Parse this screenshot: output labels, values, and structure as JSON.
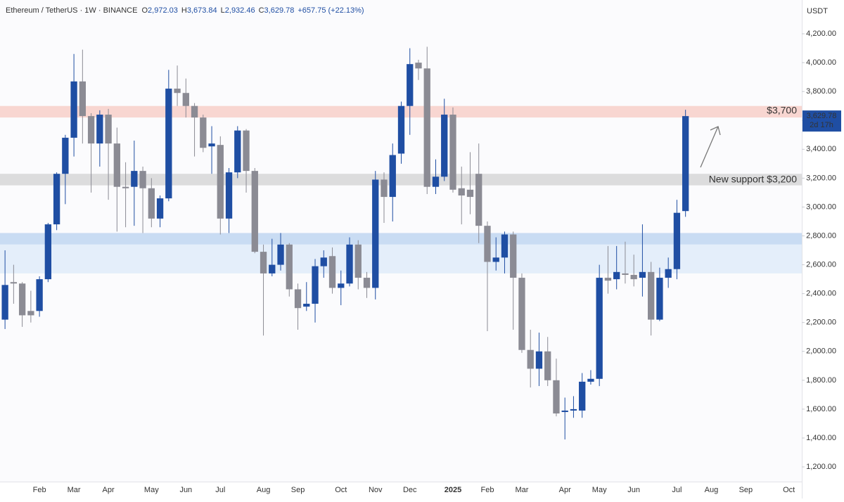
{
  "chart_data": {
    "type": "candlestick",
    "header": {
      "symbol": "Ethereum / TetherUS · 1W · BINANCE",
      "ohlc": [
        {
          "label": "O",
          "value": "2,972.03"
        },
        {
          "label": "H",
          "value": "3,673.84"
        },
        {
          "label": "L",
          "value": "2,932.46"
        },
        {
          "label": "C",
          "value": "3,629.78"
        }
      ],
      "change": "+657.75 (+22.13%)"
    },
    "currency": "USDT",
    "last_price_label": "3,629.78",
    "countdown": "2d 17h",
    "up_color": "#1f4ea3",
    "down_color": "#8b8b94",
    "categories": [
      null,
      null,
      null,
      null,
      "Feb",
      null,
      null,
      null,
      "Mar",
      null,
      null,
      null,
      "Apr",
      null,
      null,
      null,
      null,
      "May",
      null,
      null,
      null,
      "Jun",
      null,
      null,
      null,
      "Jul",
      null,
      null,
      null,
      null,
      "Aug",
      null,
      null,
      null,
      "Sep",
      null,
      null,
      null,
      null,
      "Oct",
      null,
      null,
      null,
      "Nov",
      null,
      null,
      null,
      "Dec",
      null,
      null,
      null,
      null,
      "2025",
      null,
      null,
      null,
      "Feb",
      null,
      null,
      null,
      "Mar",
      null,
      null,
      null,
      null,
      "Apr",
      null,
      null,
      null,
      "May",
      null,
      null,
      null,
      "Jun",
      null,
      null,
      null,
      null,
      "Jul",
      null,
      null,
      null,
      "Aug",
      null,
      null,
      null,
      "Sep",
      null,
      null,
      null,
      null,
      "Oct",
      null
    ],
    "open": [
      2220,
      2480,
      2470,
      2280,
      2280,
      2500,
      2880,
      3230,
      3480,
      3870,
      3630,
      3440,
      3640,
      3440,
      3140,
      3140,
      3250,
      3130,
      2920,
      3060,
      3820,
      3790,
      3700,
      3620,
      3420,
      3430,
      2920,
      3240,
      3530,
      3250,
      2690,
      2540,
      2600,
      2740,
      2430,
      2310,
      2330,
      2590,
      2660,
      2440,
      2470,
      2740,
      2510,
      2440,
      3190,
      3070,
      3370,
      3700,
      4000,
      3960,
      3140,
      3210,
      3640,
      3130,
      3120,
      3230,
      2870,
      2620,
      2650,
      2810,
      2510,
      2010,
      1880,
      2000,
      1800,
      1580,
      1590,
      1590,
      1790,
      1810,
      2510,
      2500,
      2540,
      2530,
      2510,
      2550,
      2220,
      2510,
      2570,
      2972.03,
      null,
      null,
      null,
      null,
      null,
      null,
      null,
      null,
      null,
      null,
      null,
      null,
      null
    ],
    "high": [
      2700,
      2600,
      2480,
      2420,
      2520,
      2890,
      3240,
      3500,
      4060,
      4090,
      3650,
      3670,
      3680,
      3550,
      3310,
      3460,
      3280,
      3200,
      3080,
      3950,
      3980,
      3890,
      3720,
      3640,
      3560,
      3490,
      3270,
      3560,
      3540,
      3270,
      2740,
      2780,
      2820,
      2750,
      2470,
      2480,
      2640,
      2700,
      2720,
      2560,
      2790,
      2770,
      2550,
      3250,
      3240,
      3440,
      3730,
      4100,
      4020,
      4110,
      3330,
      3750,
      3690,
      3280,
      3380,
      3440,
      2900,
      2790,
      2830,
      2830,
      2540,
      2150,
      2130,
      2100,
      1950,
      1680,
      1690,
      1850,
      1870,
      2600,
      2730,
      2730,
      2760,
      2670,
      2880,
      2620,
      2580,
      2650,
      3050,
      3673.84,
      null,
      null,
      null,
      null,
      null,
      null,
      null,
      null,
      null,
      null,
      null,
      null,
      null
    ],
    "low": [
      2155,
      2330,
      2170,
      2200,
      2240,
      2480,
      2840,
      3020,
      3350,
      3440,
      3100,
      3280,
      3050,
      2830,
      2860,
      2870,
      2820,
      2860,
      2860,
      3040,
      3700,
      3620,
      3350,
      3380,
      3230,
      2810,
      2820,
      3200,
      3100,
      2680,
      2110,
      2520,
      2560,
      2380,
      2150,
      2280,
      2200,
      2510,
      2400,
      2320,
      2450,
      2430,
      2370,
      2360,
      2890,
      2900,
      3300,
      3500,
      3880,
      3090,
      3090,
      3180,
      3100,
      2880,
      2950,
      2750,
      2140,
      2560,
      2540,
      2150,
      1990,
      1750,
      1760,
      1760,
      1550,
      1390,
      1540,
      1540,
      1770,
      1760,
      2400,
      2430,
      2470,
      2450,
      2380,
      2110,
      2210,
      2440,
      2500,
      2932.46,
      null,
      null,
      null,
      null,
      null,
      null,
      null,
      null,
      null,
      null,
      null,
      null,
      null
    ],
    "close": [
      2460,
      2470,
      2250,
      2250,
      2500,
      2880,
      3230,
      3480,
      3870,
      3630,
      3440,
      3640,
      3440,
      3140,
      3130,
      3250,
      3130,
      2920,
      3060,
      3820,
      3790,
      3700,
      3620,
      3410,
      3440,
      2920,
      3240,
      3530,
      3250,
      2690,
      2540,
      2600,
      2740,
      2430,
      2300,
      2330,
      2590,
      2650,
      2440,
      2470,
      2740,
      2510,
      2440,
      3190,
      3070,
      3360,
      3700,
      3990,
      3960,
      3140,
      3210,
      3640,
      3120,
      3080,
      3070,
      2870,
      2620,
      2650,
      2810,
      2510,
      2010,
      1880,
      2000,
      1800,
      1570,
      1590,
      1600,
      1790,
      1810,
      2510,
      2490,
      2550,
      2530,
      2500,
      2550,
      2220,
      2510,
      2570,
      2960,
      3629.78,
      null,
      null,
      null,
      null,
      null,
      null,
      null,
      null,
      null,
      null,
      null,
      null,
      null
    ],
    "zones": [
      {
        "low": 3620,
        "high": 3700,
        "color": "#f8d6d1"
      },
      {
        "low": 3150,
        "high": 3230,
        "color": "#dcdcdd"
      },
      {
        "low": 2740,
        "high": 2820,
        "color": "#c9dcf3"
      },
      {
        "low": 2540,
        "high": 2740,
        "color": "#e4eefa"
      }
    ],
    "annotations": [
      {
        "text": "$3,700",
        "color": "#ec9b8c"
      },
      {
        "text": "New support $3,200",
        "color": "#a9a9ad"
      }
    ],
    "ylim": [
      1098,
      4434
    ],
    "yticks": [
      {
        "value": 1200,
        "label": "1,200.00"
      },
      {
        "value": 1400,
        "label": "1,400.00"
      },
      {
        "value": 1600,
        "label": "1,600.00"
      },
      {
        "value": 1800,
        "label": "1,800.00"
      },
      {
        "value": 2000,
        "label": "2,000.00"
      },
      {
        "value": 2200,
        "label": "2,200.00"
      },
      {
        "value": 2400,
        "label": "2,400.00"
      },
      {
        "value": 2600,
        "label": "2,600.00"
      },
      {
        "value": 2800,
        "label": "2,800.00"
      },
      {
        "value": 3000,
        "label": "3,000.00"
      },
      {
        "value": 3200,
        "label": "3,200.00"
      },
      {
        "value": 3400,
        "label": "3,400.00"
      },
      {
        "value": 3600,
        "label": "3,600.00"
      },
      {
        "value": 3800,
        "label": "3,800.00"
      },
      {
        "value": 4000,
        "label": "4,000.00"
      },
      {
        "value": 4200,
        "label": "4,200.00"
      }
    ],
    "grid": false
  }
}
